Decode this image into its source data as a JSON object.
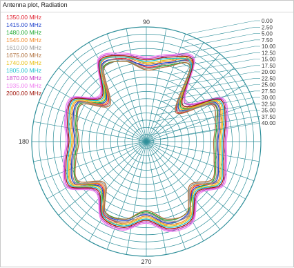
{
  "window": {
    "title": "Antenna plot, Radiation"
  },
  "chart_data": {
    "type": "polar-line",
    "title": "Antenna plot, Radiation",
    "angle_labels": [
      "90",
      "180",
      "270"
    ],
    "radial_ticks": [
      "0.00",
      "2.50",
      "5.00",
      "7.50",
      "10.00",
      "12.50",
      "15.00",
      "17.50",
      "20.00",
      "22.50",
      "25.00",
      "27.50",
      "30.00",
      "32.50",
      "35.00",
      "37.50",
      "40.00"
    ],
    "r_range_db": [
      0,
      40
    ],
    "r_direction": "0 dB at outer edge, 40 dB at center",
    "angle_grid_step_deg": 10,
    "grid": true,
    "legend_position": "top-left",
    "angles_deg": [
      0,
      15,
      30,
      45,
      60,
      75,
      90,
      105,
      120,
      135,
      150,
      165,
      180,
      195,
      210,
      225,
      240,
      255,
      270,
      285,
      300,
      315,
      330,
      345
    ],
    "series": [
      {
        "name": "1350.00 MHz",
        "color": "#e0202e",
        "values": [
          15.5,
          14.0,
          13.5,
          25.0,
          8.5,
          12.0,
          14.0,
          10.0,
          9.5,
          21.0,
          13.0,
          14.0,
          15.5,
          13.5,
          11.5,
          18.0,
          10.5,
          11.0,
          15.0,
          11.0,
          10.5,
          17.0,
          12.5,
          14.5
        ]
      },
      {
        "name": "1415.00 MHz",
        "color": "#2244cc",
        "values": [
          15.0,
          13.5,
          12.5,
          24.0,
          9.0,
          11.5,
          13.5,
          10.5,
          9.0,
          20.0,
          12.5,
          13.5,
          15.0,
          13.0,
          11.0,
          17.5,
          11.0,
          11.5,
          14.5,
          10.5,
          11.0,
          16.5,
          12.0,
          14.0
        ]
      },
      {
        "name": "1480.00 MHz",
        "color": "#22aa33",
        "values": [
          16.0,
          14.5,
          13.0,
          23.0,
          9.5,
          12.5,
          14.5,
          11.0,
          10.0,
          19.5,
          13.5,
          14.5,
          16.0,
          14.0,
          12.0,
          17.0,
          11.5,
          12.0,
          15.5,
          11.5,
          11.5,
          16.0,
          13.0,
          15.0
        ]
      },
      {
        "name": "1545.00 MHz",
        "color": "#f08a2c",
        "values": [
          14.5,
          13.0,
          12.0,
          22.5,
          8.0,
          11.0,
          13.0,
          9.5,
          8.5,
          20.5,
          12.0,
          13.0,
          14.5,
          12.5,
          10.5,
          18.5,
          10.0,
          10.5,
          14.0,
          10.0,
          10.0,
          17.5,
          11.5,
          13.5
        ]
      },
      {
        "name": "1610.00 MHz",
        "color": "#999999",
        "values": [
          15.5,
          14.0,
          13.0,
          24.5,
          9.0,
          12.0,
          14.5,
          10.5,
          9.5,
          21.5,
          13.0,
          14.0,
          15.5,
          13.5,
          11.5,
          19.0,
          11.0,
          11.0,
          15.0,
          11.0,
          10.5,
          18.0,
          12.5,
          14.5
        ]
      },
      {
        "name": "1675.00 MHz",
        "color": "#b0703c",
        "values": [
          16.5,
          15.0,
          14.0,
          25.5,
          9.5,
          13.0,
          15.0,
          11.0,
          10.5,
          22.0,
          14.0,
          15.0,
          16.5,
          14.5,
          12.5,
          19.5,
          11.5,
          12.0,
          16.0,
          12.0,
          11.5,
          18.5,
          13.5,
          15.5
        ]
      },
      {
        "name": "1740.00 MHz",
        "color": "#e8c21a",
        "values": [
          14.0,
          12.5,
          11.5,
          23.5,
          7.5,
          10.5,
          12.5,
          9.0,
          8.0,
          19.0,
          11.5,
          12.5,
          14.0,
          12.0,
          10.0,
          17.0,
          9.5,
          10.0,
          13.5,
          9.5,
          9.5,
          16.0,
          11.0,
          13.0
        ]
      },
      {
        "name": "1805.00 MHz",
        "color": "#1ec0cf",
        "values": [
          13.5,
          12.0,
          11.0,
          22.0,
          8.5,
          10.0,
          12.0,
          9.5,
          8.0,
          18.5,
          11.0,
          12.0,
          13.5,
          11.5,
          9.5,
          16.5,
          10.0,
          9.5,
          13.0,
          9.0,
          9.0,
          15.5,
          10.5,
          12.5
        ]
      },
      {
        "name": "1870.00 MHz",
        "color": "#c63dc8",
        "values": [
          12.5,
          11.0,
          10.0,
          21.0,
          7.0,
          9.0,
          11.0,
          8.5,
          7.0,
          17.5,
          10.0,
          11.0,
          12.5,
          10.5,
          8.5,
          15.5,
          9.0,
          8.5,
          12.0,
          8.0,
          8.0,
          14.5,
          9.5,
          11.5
        ]
      },
      {
        "name": "1935.00 MHz",
        "color": "#f07ff0",
        "values": [
          12.0,
          10.5,
          9.5,
          20.5,
          6.5,
          8.5,
          10.5,
          8.0,
          6.5,
          17.0,
          9.5,
          10.5,
          12.0,
          10.0,
          8.0,
          15.0,
          8.5,
          8.0,
          11.5,
          7.5,
          7.5,
          14.0,
          9.0,
          11.0
        ]
      },
      {
        "name": "2000.00 MHz",
        "color": "#a0140a",
        "values": [
          13.0,
          11.5,
          10.5,
          22.0,
          7.5,
          9.5,
          11.5,
          9.0,
          7.5,
          18.0,
          10.5,
          11.5,
          13.0,
          11.0,
          9.0,
          16.0,
          9.5,
          9.0,
          12.5,
          8.5,
          8.5,
          15.0,
          10.0,
          12.0
        ]
      }
    ]
  }
}
